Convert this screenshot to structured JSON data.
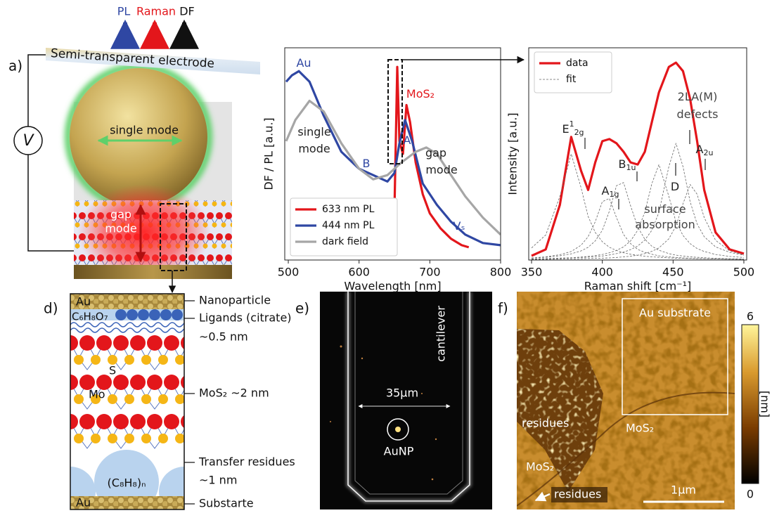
{
  "panel_a": {
    "label": "a)",
    "beams": [
      "PL",
      "Raman",
      "DF"
    ],
    "electrode": "Semi-transparent electrode",
    "source": "V",
    "single_mode": "single mode",
    "gap_mode": [
      "gap",
      "mode"
    ]
  },
  "panel_d": {
    "label": "d)",
    "inner": {
      "top_au": "Au",
      "ligand": "C₆H₈O₇",
      "sulfur": "S",
      "molybdenum": "Mo",
      "residue": "(C₈H₈)ₙ",
      "bottom_au": "Au"
    },
    "side_labels": [
      "Nanoparticle",
      "Ligands (citrate)",
      "~0.5 nm",
      "MoS₂ ~2 nm",
      "Transfer residues",
      "~1 nm",
      "Substarte"
    ]
  },
  "chart_data": [
    {
      "type": "line",
      "xlabel": "Wavelength [nm]",
      "ylabel": "DF / PL [a.u.]",
      "xlim": [
        495,
        800
      ],
      "ylim": [
        0,
        1
      ],
      "xticks": [
        500,
        600,
        700,
        800
      ],
      "legend": "lower left",
      "series": [
        {
          "name": "633 nm PL",
          "color": "#e3161b",
          "x": [
            645,
            650,
            654,
            657,
            662,
            667,
            672,
            680,
            690,
            700,
            715,
            730,
            745,
            755
          ],
          "values": [
            0.05,
            0.23,
            0.91,
            0.56,
            0.5,
            0.73,
            0.65,
            0.46,
            0.31,
            0.22,
            0.15,
            0.1,
            0.07,
            0.06
          ]
        },
        {
          "name": "444 nm PL",
          "color": "#2f47a3",
          "x": [
            497,
            505,
            515,
            530,
            550,
            575,
            600,
            620,
            640,
            650,
            657,
            665,
            675,
            690,
            710,
            730,
            750,
            775,
            800
          ],
          "values": [
            0.84,
            0.87,
            0.89,
            0.84,
            0.68,
            0.51,
            0.43,
            0.4,
            0.37,
            0.41,
            0.55,
            0.66,
            0.56,
            0.36,
            0.26,
            0.18,
            0.12,
            0.08,
            0.07
          ]
        },
        {
          "name": "dark field",
          "color": "#a6a6a6",
          "x": [
            497,
            510,
            530,
            550,
            575,
            600,
            620,
            640,
            660,
            680,
            695,
            710,
            730,
            750,
            775,
            800
          ],
          "values": [
            0.56,
            0.66,
            0.75,
            0.7,
            0.55,
            0.43,
            0.38,
            0.4,
            0.46,
            0.51,
            0.53,
            0.5,
            0.4,
            0.3,
            0.2,
            0.12
          ]
        }
      ],
      "annotations": [
        {
          "text": "Au"
        },
        {
          "text": "single"
        },
        {
          "text": "mode"
        },
        {
          "text": "B"
        },
        {
          "text": "MoS₂"
        },
        {
          "text": "A"
        },
        {
          "text": "gap"
        },
        {
          "text": "mode"
        },
        {
          "text": "Vₛ"
        }
      ]
    },
    {
      "type": "line",
      "xlabel": "Raman shift [cm⁻¹]",
      "ylabel": "Intensity [a.u.]",
      "xlim": [
        348,
        502
      ],
      "ylim": [
        0,
        1
      ],
      "xticks": [
        350,
        400,
        450,
        500
      ],
      "legend": "upper left",
      "x": [
        350,
        360,
        370,
        378,
        385,
        390,
        395,
        400,
        405,
        410,
        415,
        420,
        425,
        430,
        435,
        440,
        447,
        452,
        457,
        462,
        467,
        472,
        480,
        490,
        500
      ],
      "series": [
        {
          "name": "data",
          "color": "#e3161b",
          "values": [
            0.02,
            0.05,
            0.26,
            0.58,
            0.42,
            0.33,
            0.46,
            0.56,
            0.57,
            0.55,
            0.51,
            0.46,
            0.45,
            0.51,
            0.65,
            0.79,
            0.91,
            0.93,
            0.89,
            0.76,
            0.56,
            0.33,
            0.13,
            0.05,
            0.03
          ]
        },
        {
          "name": "fit",
          "color": "#666666",
          "dashed": true,
          "components": [
            [
              0.057,
              0.118,
              0.3,
              0.5,
              0.34,
              0.205,
              0.13,
              0.086,
              0.06,
              0.045,
              0.034,
              0.027,
              0.022,
              0.018,
              0.015,
              0.013,
              0.01,
              0.009,
              0.008,
              0.007,
              0.006,
              0.006,
              0.005,
              0.004,
              0.003
            ],
            [
              0.01,
              0.015,
              0.025,
              0.04,
              0.07,
              0.11,
              0.18,
              0.275,
              0.29,
              0.2,
              0.12,
              0.077,
              0.05,
              0.036,
              0.027,
              0.02,
              0.015,
              0.012,
              0.01,
              0.008,
              0.007,
              0.006,
              0.005,
              0.004,
              0.003
            ],
            [
              0.009,
              0.013,
              0.02,
              0.029,
              0.043,
              0.06,
              0.09,
              0.14,
              0.23,
              0.35,
              0.365,
              0.255,
              0.156,
              0.098,
              0.065,
              0.046,
              0.03,
              0.023,
              0.019,
              0.015,
              0.013,
              0.011,
              0.008,
              0.006,
              0.005
            ],
            [
              0.005,
              0.007,
              0.009,
              0.011,
              0.014,
              0.017,
              0.021,
              0.026,
              0.034,
              0.045,
              0.062,
              0.09,
              0.14,
              0.225,
              0.36,
              0.45,
              0.3,
              0.18,
              0.116,
              0.077,
              0.054,
              0.04,
              0.026,
              0.017,
              0.012
            ],
            [
              0.005,
              0.006,
              0.008,
              0.01,
              0.012,
              0.014,
              0.016,
              0.019,
              0.024,
              0.03,
              0.037,
              0.049,
              0.066,
              0.094,
              0.14,
              0.225,
              0.44,
              0.55,
              0.44,
              0.275,
              0.17,
              0.11,
              0.062,
              0.036,
              0.023
            ],
            [
              0.003,
              0.003,
              0.004,
              0.005,
              0.006,
              0.007,
              0.008,
              0.009,
              0.01,
              0.012,
              0.015,
              0.018,
              0.023,
              0.03,
              0.041,
              0.057,
              0.1,
              0.16,
              0.265,
              0.356,
              0.31,
              0.2,
              0.093,
              0.043,
              0.024
            ]
          ]
        }
      ],
      "annotations": [
        {
          "text": "E",
          "sup": "1",
          "sub": "2g"
        },
        {
          "text": "A",
          "sub": "1g"
        },
        {
          "text": "B",
          "sub": "1u"
        },
        {
          "text": "D"
        },
        {
          "text": "2LA(M)"
        },
        {
          "text": "defects"
        },
        {
          "text": "A",
          "sub": "2u"
        },
        {
          "text": "surface"
        },
        {
          "text": "absorption"
        }
      ]
    }
  ],
  "panel_e": {
    "label": "e)",
    "cantilever": "cantilever",
    "width": "35µm",
    "particle": "AuNP"
  },
  "panel_f": {
    "label": "f)",
    "substrate": "Au substrate",
    "residues": "residues",
    "mos2_right": "MoS₂",
    "mos2_left": "MoS₂",
    "residues_arrow": "residues",
    "scale": "1µm",
    "colorbar": {
      "ticks": [
        0,
        6
      ],
      "range": [
        0,
        6
      ],
      "label": "[nm]"
    }
  }
}
